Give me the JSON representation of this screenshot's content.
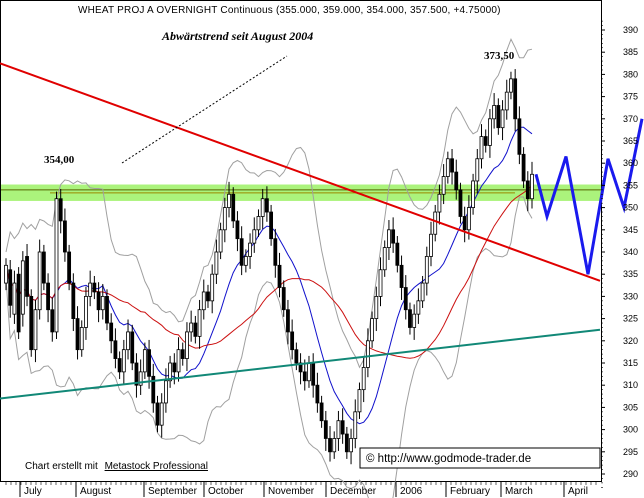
{
  "chart_data": {
    "type": "candlestick",
    "title": "WHEAT PROJ A OVERNIGHT Continuous (355.000, 359.000, 354.000, 357.500, +4.75000)",
    "subtitle": "Abwärtstrend seit August 2004",
    "y_axis": {
      "range": [
        287,
        392
      ],
      "ticks": [
        290,
        295,
        300,
        305,
        310,
        315,
        320,
        325,
        330,
        335,
        340,
        345,
        350,
        355,
        360,
        365,
        370,
        375,
        380,
        385,
        390
      ],
      "position": "right"
    },
    "x_axis": {
      "months": [
        "July",
        "August",
        "September",
        "October",
        "November",
        "December",
        "2006",
        "February",
        "March",
        "April"
      ]
    },
    "annotations": [
      {
        "text": "354,00"
      },
      {
        "text": "373,50"
      }
    ],
    "support_zone": {
      "low": 351.5,
      "high": 355.2,
      "color": "#88ee44"
    },
    "horizontal_level": 354,
    "downtrend_line": {
      "from": [
        0,
        382.5
      ],
      "to": [
        600,
        333.5
      ],
      "color": "#e00000"
    },
    "uptrend_line": {
      "from": [
        0,
        307
      ],
      "to": [
        600,
        322.5
      ],
      "color": "#118877"
    },
    "projection": {
      "color": "#1a1aee",
      "values": [
        357.5,
        348,
        361.5,
        335,
        361,
        350,
        370
      ]
    },
    "candles_open_close": [
      [
        333,
        337
      ],
      [
        336,
        328
      ],
      [
        326,
        333
      ],
      [
        335,
        322
      ],
      [
        326,
        338
      ],
      [
        339,
        330
      ],
      [
        330,
        318
      ],
      [
        318,
        327
      ],
      [
        327,
        340
      ],
      [
        340,
        333
      ],
      [
        333,
        327
      ],
      [
        327,
        322
      ],
      [
        322,
        352
      ],
      [
        352,
        347
      ],
      [
        347,
        340
      ],
      [
        340,
        333
      ],
      [
        333,
        325
      ],
      [
        325,
        318
      ],
      [
        318,
        323
      ],
      [
        323,
        330
      ],
      [
        330,
        333
      ],
      [
        333,
        331
      ],
      [
        331,
        327
      ],
      [
        327,
        330
      ],
      [
        330,
        324
      ],
      [
        324,
        320
      ],
      [
        320,
        316
      ],
      [
        316,
        313
      ],
      [
        313,
        318
      ],
      [
        318,
        322
      ],
      [
        322,
        315
      ],
      [
        315,
        310
      ],
      [
        310,
        313
      ],
      [
        313,
        318
      ],
      [
        318,
        312
      ],
      [
        312,
        306
      ],
      [
        306,
        301
      ],
      [
        301,
        306
      ],
      [
        306,
        311
      ],
      [
        311,
        315
      ],
      [
        315,
        313
      ],
      [
        313,
        318
      ],
      [
        318,
        316
      ],
      [
        316,
        322
      ],
      [
        322,
        324
      ],
      [
        324,
        321
      ],
      [
        321,
        327
      ],
      [
        327,
        331
      ],
      [
        331,
        329
      ],
      [
        329,
        335
      ],
      [
        335,
        340
      ],
      [
        340,
        345
      ],
      [
        345,
        350
      ],
      [
        350,
        353
      ],
      [
        353,
        347
      ],
      [
        347,
        343
      ],
      [
        343,
        337
      ],
      [
        337,
        339
      ],
      [
        339,
        342
      ],
      [
        342,
        345
      ],
      [
        345,
        348
      ],
      [
        348,
        352
      ],
      [
        352,
        349
      ],
      [
        349,
        343
      ],
      [
        343,
        337
      ],
      [
        337,
        332
      ],
      [
        332,
        327
      ],
      [
        327,
        322
      ],
      [
        322,
        318
      ],
      [
        318,
        315
      ],
      [
        315,
        313
      ],
      [
        313,
        311
      ],
      [
        311,
        315
      ],
      [
        315,
        310
      ],
      [
        310,
        306
      ],
      [
        306,
        302
      ],
      [
        302,
        298
      ],
      [
        298,
        295
      ],
      [
        295,
        298
      ],
      [
        298,
        302
      ],
      [
        302,
        299
      ],
      [
        299,
        295
      ],
      [
        295,
        298
      ],
      [
        298,
        304
      ],
      [
        304,
        309
      ],
      [
        309,
        314
      ],
      [
        314,
        320
      ],
      [
        320,
        325
      ],
      [
        325,
        330
      ],
      [
        330,
        336
      ],
      [
        336,
        341
      ],
      [
        341,
        345
      ],
      [
        345,
        342
      ],
      [
        342,
        337
      ],
      [
        337,
        332
      ],
      [
        332,
        327
      ],
      [
        327,
        323
      ],
      [
        323,
        326
      ],
      [
        326,
        329
      ],
      [
        329,
        333
      ],
      [
        333,
        339
      ],
      [
        339,
        344
      ],
      [
        344,
        349
      ],
      [
        349,
        353
      ],
      [
        353,
        357
      ],
      [
        357,
        361
      ],
      [
        361,
        358
      ],
      [
        358,
        354
      ],
      [
        354,
        348
      ],
      [
        348,
        345
      ],
      [
        345,
        350
      ],
      [
        350,
        356
      ],
      [
        356,
        361
      ],
      [
        361,
        366
      ],
      [
        366,
        364
      ],
      [
        364,
        370
      ],
      [
        370,
        373
      ],
      [
        373,
        368
      ],
      [
        368,
        372
      ],
      [
        372,
        376
      ],
      [
        376,
        379
      ],
      [
        379,
        370
      ],
      [
        370,
        362
      ],
      [
        362,
        356
      ],
      [
        356,
        352
      ],
      [
        352,
        357.5
      ]
    ],
    "moving_average_colors": [
      "#1111cc",
      "#cc1111"
    ],
    "bollinger_color": "#a0a0a0"
  },
  "footer": {
    "credit_prefix": "Chart erstellt mit",
    "credit_link": "Metastock Professional",
    "copyright": "© http://www.godmode-trader.de"
  }
}
